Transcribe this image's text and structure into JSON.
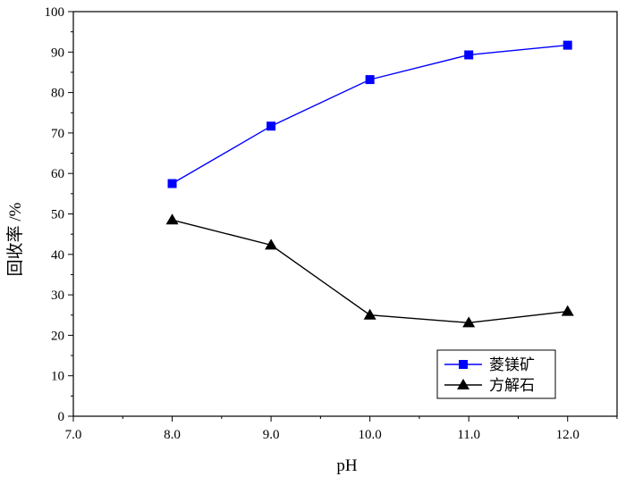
{
  "chart_data": {
    "type": "line",
    "title": "",
    "xlabel": "pH",
    "ylabel": "回收率 /%",
    "xlim": [
      7.0,
      12.5
    ],
    "ylim": [
      0,
      100
    ],
    "x_ticks": [
      7.0,
      8.0,
      9.0,
      10.0,
      11.0,
      12.0
    ],
    "x_tick_labels": [
      "7.0",
      "8.0",
      "9.0",
      "10.0",
      "11.0",
      "12.0"
    ],
    "y_ticks": [
      0,
      10,
      20,
      30,
      40,
      50,
      60,
      70,
      80,
      90,
      100
    ],
    "y_tick_labels": [
      "0",
      "10",
      "20",
      "30",
      "40",
      "50",
      "60",
      "70",
      "80",
      "90",
      "100"
    ],
    "grid": false,
    "legend_position": "bottom-right",
    "x": [
      8.0,
      9.0,
      10.0,
      11.0,
      12.0
    ],
    "series": [
      {
        "name": "菱镁矿",
        "values": [
          57.5,
          71.7,
          83.2,
          89.3,
          91.7
        ],
        "color": "#0000ff",
        "marker": "square"
      },
      {
        "name": "方解石",
        "values": [
          48.5,
          42.3,
          25.0,
          23.1,
          25.9
        ],
        "color": "#000000",
        "marker": "triangle"
      }
    ]
  }
}
